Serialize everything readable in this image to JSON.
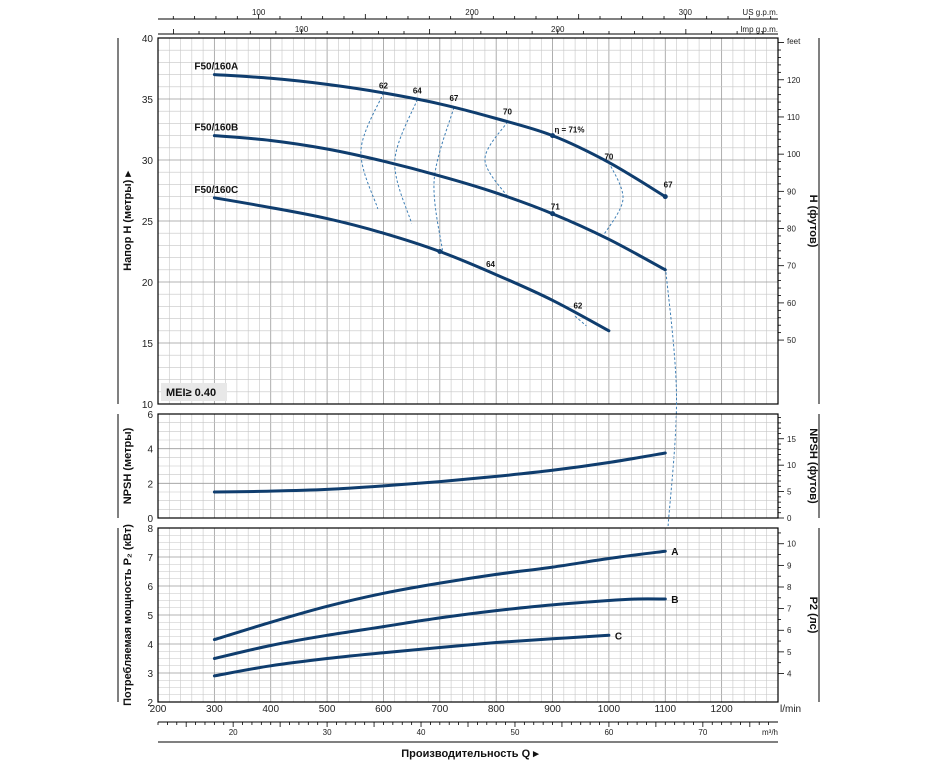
{
  "chart_data": [
    {
      "type": "line",
      "panel": "head",
      "ylabel": "Напор H (метры)",
      "ylabel_right": "H (футов)",
      "ylim": [
        10,
        40
      ],
      "yticks": [
        10,
        15,
        20,
        25,
        30,
        35,
        40
      ],
      "yticks_right": [
        50,
        60,
        70,
        80,
        90,
        100,
        110,
        120
      ],
      "yticks_right_top_unit": "feet",
      "series": [
        {
          "name": "F50/160A",
          "x": [
            300,
            400,
            500,
            600,
            700,
            800,
            900,
            1000,
            1100
          ],
          "y": [
            37.0,
            36.7,
            36.2,
            35.5,
            34.6,
            33.4,
            32.0,
            29.8,
            27.0
          ]
        },
        {
          "name": "F50/160B",
          "x": [
            300,
            400,
            500,
            600,
            700,
            800,
            900,
            1000,
            1100
          ],
          "y": [
            32.0,
            31.6,
            30.9,
            29.9,
            28.7,
            27.3,
            25.6,
            23.5,
            21.0
          ]
        },
        {
          "name": "F50/160C",
          "x": [
            300,
            400,
            500,
            600,
            700,
            800,
            900,
            1000
          ],
          "y": [
            26.9,
            26.1,
            25.2,
            24.0,
            22.5,
            20.6,
            18.5,
            16.0
          ]
        }
      ],
      "efficiency_labels": [
        {
          "text": "62",
          "x": 600,
          "y": 35.6
        },
        {
          "text": "64",
          "x": 660,
          "y": 35.2
        },
        {
          "text": "67",
          "x": 725,
          "y": 34.6
        },
        {
          "text": "70",
          "x": 820,
          "y": 33.5
        },
        {
          "text": "η = 71%",
          "x": 930,
          "y": 32.0
        },
        {
          "text": "70",
          "x": 1000,
          "y": 29.8
        },
        {
          "text": "67",
          "x": 1105,
          "y": 27.5
        },
        {
          "text": "71",
          "x": 905,
          "y": 25.7
        },
        {
          "text": "64",
          "x": 790,
          "y": 21.0
        },
        {
          "text": "62",
          "x": 945,
          "y": 17.6
        }
      ],
      "annotation": "MEI≥ 0.40"
    },
    {
      "type": "line",
      "panel": "npsh",
      "ylabel": "NPSH (метры)",
      "ylabel_right": "NPSH (футов)",
      "ylim": [
        0,
        6
      ],
      "yticks": [
        0,
        2,
        4,
        6
      ],
      "yticks_right": [
        0,
        5,
        10,
        15
      ],
      "series": [
        {
          "x": [
            300,
            400,
            500,
            600,
            700,
            800,
            900,
            1000,
            1100
          ],
          "y": [
            1.5,
            1.55,
            1.65,
            1.85,
            2.1,
            2.4,
            2.75,
            3.2,
            3.75
          ]
        }
      ]
    },
    {
      "type": "line",
      "panel": "power",
      "ylabel": "Потребляемая мощность P₂ (кВт)",
      "ylabel_right": "P2 (лс)",
      "ylim": [
        2,
        8
      ],
      "yticks": [
        2,
        3,
        4,
        5,
        6,
        7,
        8
      ],
      "yticks_right": [
        4,
        5,
        6,
        7,
        8,
        9,
        10
      ],
      "series": [
        {
          "name": "A",
          "x": [
            300,
            400,
            500,
            600,
            700,
            800,
            900,
            1000,
            1100
          ],
          "y": [
            4.15,
            4.75,
            5.3,
            5.75,
            6.1,
            6.4,
            6.65,
            6.95,
            7.2
          ]
        },
        {
          "name": "B",
          "x": [
            300,
            400,
            500,
            600,
            700,
            800,
            900,
            1000,
            1050,
            1100
          ],
          "y": [
            3.5,
            3.95,
            4.3,
            4.6,
            4.9,
            5.15,
            5.35,
            5.5,
            5.55,
            5.55
          ]
        },
        {
          "name": "C",
          "x": [
            300,
            400,
            500,
            600,
            700,
            800,
            900,
            1000
          ],
          "y": [
            2.9,
            3.25,
            3.5,
            3.7,
            3.88,
            4.05,
            4.18,
            4.3
          ]
        }
      ]
    }
  ],
  "x_axis": {
    "xlim": [
      200,
      1300
    ],
    "ticks_lmin": [
      200,
      300,
      400,
      500,
      600,
      700,
      800,
      900,
      1000,
      1100,
      1200
    ],
    "unit_lmin": "l/min",
    "ticks_m3h": [
      20,
      30,
      40,
      50,
      60,
      70
    ],
    "unit_m3h": "m³/h",
    "ticks_us_gpm": [
      100,
      200,
      300
    ],
    "unit_us_gpm": "US g.p.m.",
    "ticks_imp_gpm": [
      100,
      200
    ],
    "unit_imp_gpm": "Imp g.p.m.",
    "xlabel": "Производительность Q"
  }
}
